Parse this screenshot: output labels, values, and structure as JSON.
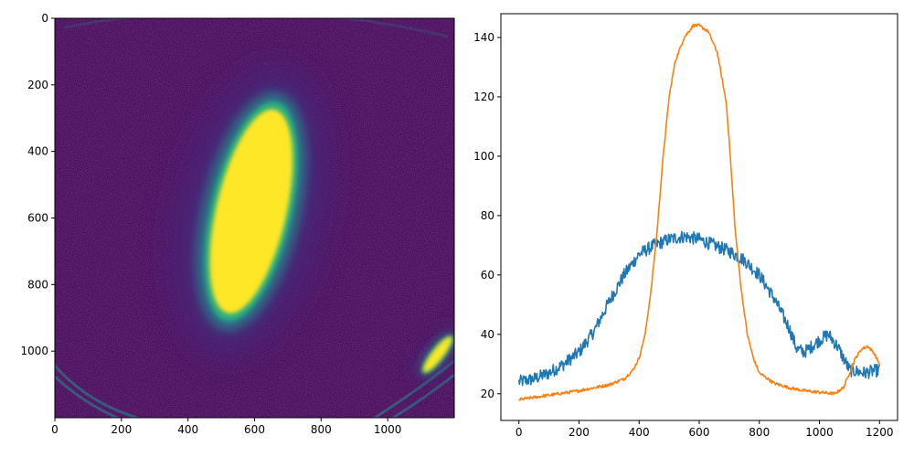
{
  "chart_data": [
    {
      "type": "heatmap",
      "title": "",
      "colormap": "viridis",
      "colors": {
        "background": "#440154",
        "noise": "#46287a",
        "mid": "#21918c",
        "bright": "#2fb47c",
        "saturated": "#fde725"
      },
      "xlim": [
        0,
        1200
      ],
      "ylim": [
        1200,
        0
      ],
      "x_ticks": [
        0,
        200,
        400,
        600,
        800,
        1000
      ],
      "y_ticks": [
        0,
        200,
        400,
        600,
        800,
        1000
      ],
      "features": [
        {
          "name": "main-beam-spot",
          "center": [
            590,
            580
          ],
          "semi_axes": [
            115,
            330
          ],
          "tilt_deg": 13,
          "level": "saturated"
        },
        {
          "name": "secondary-spot",
          "center": [
            1150,
            1010
          ],
          "semi_axes": [
            18,
            70
          ],
          "tilt_deg": 38,
          "level": "saturated"
        }
      ]
    },
    {
      "type": "line",
      "title": "",
      "xlabel": "",
      "ylabel": "",
      "xlim": [
        -60,
        1260
      ],
      "ylim": [
        11,
        148
      ],
      "x_ticks": [
        0,
        200,
        400,
        600,
        800,
        1000,
        1200
      ],
      "y_ticks": [
        20,
        40,
        60,
        80,
        100,
        120,
        140
      ],
      "series": [
        {
          "name": "series-1",
          "color": "#1f77b4",
          "noise_amplitude": 2.2,
          "x": [
            0,
            50,
            100,
            150,
            200,
            250,
            300,
            350,
            400,
            450,
            500,
            550,
            600,
            650,
            700,
            750,
            800,
            850,
            900,
            925,
            950,
            1000,
            1030,
            1060,
            1100,
            1150,
            1200
          ],
          "y": [
            24,
            25,
            27,
            30,
            34,
            41,
            51,
            60,
            67,
            70,
            72,
            73,
            72,
            70,
            68,
            65,
            60,
            52,
            42,
            35,
            34,
            38,
            40,
            36,
            28,
            27,
            28
          ]
        },
        {
          "name": "series-2",
          "color": "#ff7f0e",
          "noise_amplitude": 0.5,
          "x": [
            0,
            100,
            200,
            300,
            350,
            380,
            400,
            420,
            440,
            460,
            480,
            500,
            520,
            550,
            580,
            600,
            630,
            660,
            690,
            700,
            710,
            720,
            740,
            760,
            780,
            800,
            850,
            900,
            950,
            1000,
            1050,
            1080,
            1100,
            1120,
            1140,
            1160,
            1180,
            1200
          ],
          "y": [
            18,
            19.5,
            21,
            23,
            25,
            28,
            32,
            40,
            55,
            75,
            100,
            120,
            132,
            140,
            144,
            144,
            142,
            135,
            118,
            105,
            90,
            75,
            55,
            40,
            32,
            27,
            23.5,
            22,
            21,
            20.5,
            20,
            22,
            27,
            32,
            35,
            36,
            34,
            30
          ]
        }
      ]
    }
  ]
}
